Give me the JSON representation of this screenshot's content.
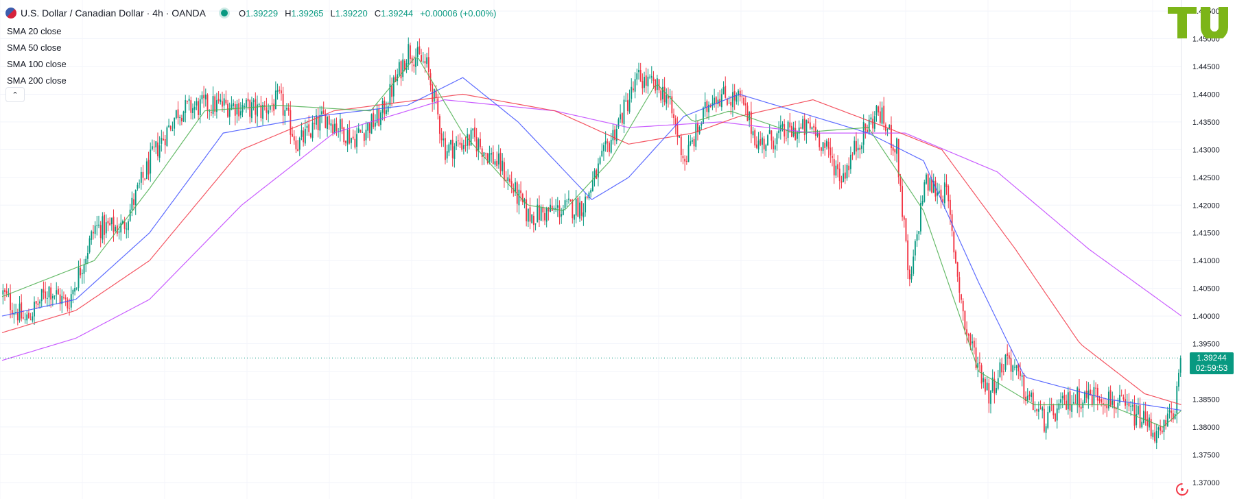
{
  "header": {
    "title": "U.S. Dollar / Canadian Dollar · 4h · OANDA",
    "ohlc": [
      {
        "k": "O",
        "v": "1.39229"
      },
      {
        "k": "H",
        "v": "1.39265"
      },
      {
        "k": "L",
        "v": "1.39220"
      },
      {
        "k": "C",
        "v": "1.39244"
      }
    ],
    "change": "+0.00006 (+0.00%)"
  },
  "legend": [
    "SMA 20 close",
    "SMA 50 close",
    "SMA 100 close",
    "SMA 200 close"
  ],
  "current": {
    "price": "1.39244",
    "countdown": "02:59:53"
  },
  "colors": {
    "up": "#089981",
    "down": "#f23645",
    "sma20": "#4caf50",
    "sma50": "#3f51ff",
    "sma100": "#f23645",
    "sma200": "#bf40ff"
  },
  "chart_data": {
    "type": "line",
    "ylim": [
      1.368,
      1.456
    ],
    "y_ticks": [
      "1.37000",
      "1.37500",
      "1.38000",
      "1.38500",
      "1.39000",
      "1.39500",
      "1.40000",
      "1.40500",
      "1.41000",
      "1.41500",
      "1.42000",
      "1.42500",
      "1.43000",
      "1.43500",
      "1.44000",
      "1.44500",
      "1.45000",
      "1.45500"
    ],
    "close_anchors": [
      [
        0,
        1.404
      ],
      [
        12,
        1.399
      ],
      [
        25,
        1.405
      ],
      [
        35,
        1.402
      ],
      [
        50,
        1.416
      ],
      [
        65,
        1.416
      ],
      [
        80,
        1.428
      ],
      [
        95,
        1.437
      ],
      [
        110,
        1.438
      ],
      [
        125,
        1.438
      ],
      [
        140,
        1.437
      ],
      [
        150,
        1.439
      ],
      [
        160,
        1.431
      ],
      [
        175,
        1.436
      ],
      [
        190,
        1.432
      ],
      [
        205,
        1.436
      ],
      [
        220,
        1.448
      ],
      [
        230,
        1.445
      ],
      [
        240,
        1.43
      ],
      [
        255,
        1.432
      ],
      [
        270,
        1.427
      ],
      [
        285,
        1.418
      ],
      [
        300,
        1.419
      ],
      [
        315,
        1.42
      ],
      [
        330,
        1.432
      ],
      [
        345,
        1.443
      ],
      [
        360,
        1.44
      ],
      [
        370,
        1.428
      ],
      [
        385,
        1.44
      ],
      [
        400,
        1.439
      ],
      [
        410,
        1.431
      ],
      [
        425,
        1.433
      ],
      [
        440,
        1.434
      ],
      [
        455,
        1.425
      ],
      [
        465,
        1.432
      ],
      [
        475,
        1.437
      ],
      [
        485,
        1.43
      ],
      [
        492,
        1.405
      ],
      [
        500,
        1.424
      ],
      [
        512,
        1.422
      ],
      [
        522,
        1.398
      ],
      [
        535,
        1.386
      ],
      [
        545,
        1.393
      ],
      [
        555,
        1.386
      ],
      [
        565,
        1.381
      ],
      [
        580,
        1.385
      ],
      [
        595,
        1.386
      ],
      [
        610,
        1.383
      ],
      [
        620,
        1.381
      ],
      [
        628,
        1.378
      ],
      [
        636,
        1.384
      ],
      [
        640,
        1.3924
      ]
    ],
    "sma20": [
      [
        0,
        1.4035
      ],
      [
        50,
        1.41
      ],
      [
        80,
        1.423
      ],
      [
        110,
        1.437
      ],
      [
        150,
        1.438
      ],
      [
        200,
        1.437
      ],
      [
        225,
        1.447
      ],
      [
        250,
        1.433
      ],
      [
        285,
        1.42
      ],
      [
        305,
        1.419
      ],
      [
        330,
        1.428
      ],
      [
        355,
        1.442
      ],
      [
        375,
        1.435
      ],
      [
        395,
        1.437
      ],
      [
        430,
        1.433
      ],
      [
        470,
        1.434
      ],
      [
        500,
        1.419
      ],
      [
        530,
        1.39
      ],
      [
        560,
        1.384
      ],
      [
        600,
        1.384
      ],
      [
        630,
        1.38
      ],
      [
        640,
        1.383
      ]
    ],
    "sma50": [
      [
        0,
        1.4
      ],
      [
        40,
        1.403
      ],
      [
        80,
        1.415
      ],
      [
        120,
        1.433
      ],
      [
        170,
        1.436
      ],
      [
        220,
        1.438
      ],
      [
        250,
        1.443
      ],
      [
        280,
        1.435
      ],
      [
        320,
        1.421
      ],
      [
        340,
        1.425
      ],
      [
        370,
        1.436
      ],
      [
        400,
        1.44
      ],
      [
        440,
        1.436
      ],
      [
        470,
        1.433
      ],
      [
        500,
        1.428
      ],
      [
        530,
        1.406
      ],
      [
        555,
        1.389
      ],
      [
        600,
        1.385
      ],
      [
        640,
        1.383
      ]
    ],
    "sma100": [
      [
        0,
        1.397
      ],
      [
        40,
        1.401
      ],
      [
        80,
        1.41
      ],
      [
        130,
        1.43
      ],
      [
        180,
        1.437
      ],
      [
        250,
        1.44
      ],
      [
        300,
        1.437
      ],
      [
        340,
        1.431
      ],
      [
        375,
        1.433
      ],
      [
        400,
        1.436
      ],
      [
        440,
        1.439
      ],
      [
        480,
        1.434
      ],
      [
        510,
        1.43
      ],
      [
        550,
        1.412
      ],
      [
        585,
        1.395
      ],
      [
        620,
        1.386
      ],
      [
        640,
        1.384
      ]
    ],
    "sma200": [
      [
        0,
        1.392
      ],
      [
        40,
        1.396
      ],
      [
        80,
        1.403
      ],
      [
        130,
        1.42
      ],
      [
        180,
        1.433
      ],
      [
        240,
        1.439
      ],
      [
        300,
        1.437
      ],
      [
        340,
        1.434
      ],
      [
        390,
        1.435
      ],
      [
        440,
        1.433
      ],
      [
        490,
        1.433
      ],
      [
        540,
        1.426
      ],
      [
        590,
        1.412
      ],
      [
        640,
        1.4
      ]
    ]
  }
}
